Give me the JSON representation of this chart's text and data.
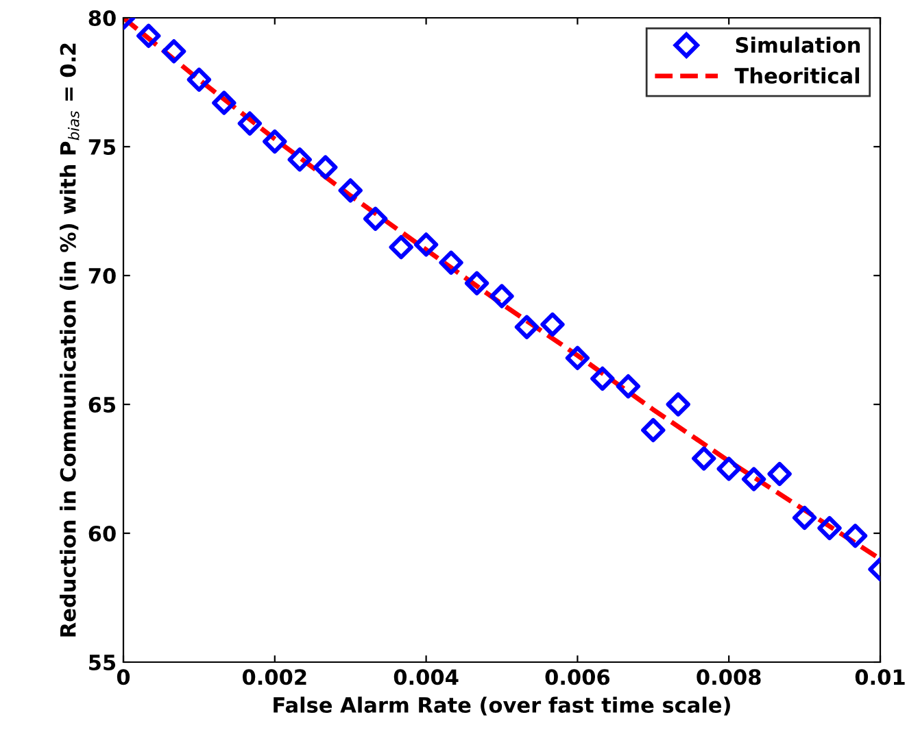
{
  "chart_data": {
    "type": "scatter",
    "xlabel": "False Alarm Rate (over fast time scale)",
    "ylabel": "Reduction in Communication (in %) with P$_{bias}$ = 0.2",
    "xlim": [
      0,
      0.01
    ],
    "ylim": [
      55,
      80
    ],
    "xticks": [
      0,
      0.002,
      0.004,
      0.006,
      0.008,
      0.01
    ],
    "yticks": [
      55,
      60,
      65,
      70,
      75,
      80
    ],
    "grid": false,
    "legend": "top right",
    "series": [
      {
        "name": "Simulation",
        "color": "#0000ff",
        "marker": "diamond",
        "x": [
          0,
          0.000333,
          0.000667,
          0.001,
          0.00133,
          0.00167,
          0.002,
          0.00233,
          0.00267,
          0.003,
          0.00333,
          0.00367,
          0.004,
          0.00433,
          0.00467,
          0.005,
          0.00533,
          0.00567,
          0.006,
          0.00633,
          0.00667,
          0.007,
          0.00733,
          0.00767,
          0.008,
          0.00833,
          0.00867,
          0.009,
          0.00933,
          0.00967,
          0.01
        ],
        "values": [
          80.0,
          79.3,
          78.7,
          77.6,
          76.7,
          75.9,
          75.2,
          74.5,
          74.2,
          73.3,
          72.2,
          71.1,
          71.2,
          70.5,
          69.7,
          69.2,
          68.0,
          68.1,
          66.8,
          66.0,
          65.7,
          64.0,
          65.0,
          62.9,
          62.5,
          62.1,
          62.3,
          60.6,
          60.2,
          59.9,
          58.6
        ]
      },
      {
        "name": "Theoritical",
        "type": "line",
        "color": "#ff0000",
        "line_style": "dashed",
        "marker": "none",
        "x": [
          0,
          0.001,
          0.002,
          0.003,
          0.004,
          0.005,
          0.006,
          0.007,
          0.008,
          0.009,
          0.01
        ],
        "values": [
          80.0,
          77.6,
          75.3,
          73.1,
          71.0,
          68.9,
          66.9,
          64.8,
          62.8,
          60.9,
          59.0
        ]
      }
    ]
  }
}
